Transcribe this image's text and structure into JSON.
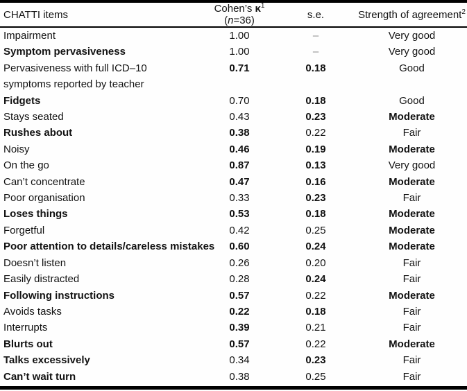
{
  "table": {
    "header": {
      "items": "CHATTI items",
      "kappa_prefix": "Cohen’s ",
      "kappa_symbol": "κ",
      "kappa_sup": "1",
      "kappa_open": " (",
      "n_var": "n",
      "n_rest": "=36)",
      "se": "s.e.",
      "strength": "Strength of agreement",
      "strength_sup": "2"
    },
    "rows": [
      {
        "item": "Impairment",
        "kappa": "1.00",
        "se": "–",
        "se_dash": true,
        "strength": "Very good"
      },
      {
        "item": "Symptom pervasiveness",
        "item_bold": true,
        "kappa": "1.00",
        "se": "–",
        "se_dash": true,
        "strength": "Very good"
      },
      {
        "item": "Pervasiveness with full ICD–10",
        "item_line2": "symptoms reported by teacher",
        "kappa": "0.71",
        "kappa_bold": true,
        "se": "0.18",
        "se_bold": true,
        "strength": "Good"
      },
      {
        "item": "Fidgets",
        "item_bold": true,
        "kappa": "0.70",
        "se": "0.18",
        "se_bold": true,
        "strength": "Good"
      },
      {
        "item": "Stays seated",
        "kappa": "0.43",
        "se": "0.23",
        "se_bold": true,
        "strength": "Moderate",
        "strength_bold": true
      },
      {
        "item": "Rushes about",
        "item_bold": true,
        "kappa": "0.38",
        "kappa_bold": true,
        "se": "0.22",
        "strength": "Fair"
      },
      {
        "item": "Noisy",
        "kappa": "0.46",
        "kappa_bold": true,
        "se": "0.19",
        "se_bold": true,
        "strength": "Moderate",
        "strength_bold": true
      },
      {
        "item": "On the go",
        "kappa": "0.87",
        "kappa_bold": true,
        "se": "0.13",
        "se_bold": true,
        "strength": "Very good"
      },
      {
        "item": "Can’t concentrate",
        "kappa": "0.47",
        "kappa_bold": true,
        "se": "0.16",
        "se_bold": true,
        "strength": "Moderate",
        "strength_bold": true
      },
      {
        "item": "Poor organisation",
        "kappa": "0.33",
        "se": "0.23",
        "se_bold": true,
        "strength": "Fair"
      },
      {
        "item": "Loses things",
        "item_bold": true,
        "kappa": "0.53",
        "kappa_bold": true,
        "se": "0.18",
        "se_bold": true,
        "strength": "Moderate",
        "strength_bold": true
      },
      {
        "item": "Forgetful",
        "kappa": "0.42",
        "se": "0.25",
        "strength": "Moderate",
        "strength_bold": true
      },
      {
        "item": "Poor attention to details/careless mistakes",
        "item_bold": true,
        "kappa": "0.60",
        "kappa_bold": true,
        "se": "0.24",
        "se_bold": true,
        "strength": "Moderate",
        "strength_bold": true
      },
      {
        "item": "Doesn’t listen",
        "kappa": "0.26",
        "se": "0.20",
        "strength": "Fair"
      },
      {
        "item": "Easily distracted",
        "kappa": "0.28",
        "se": "0.24",
        "se_bold": true,
        "strength": "Fair"
      },
      {
        "item": "Following instructions",
        "item_bold": true,
        "kappa": "0.57",
        "kappa_bold": true,
        "se": "0.22",
        "strength": "Moderate",
        "strength_bold": true
      },
      {
        "item": "Avoids tasks",
        "kappa": "0.22",
        "kappa_bold": true,
        "se": "0.18",
        "se_bold": true,
        "strength": "Fair"
      },
      {
        "item": "Interrupts",
        "kappa": "0.39",
        "kappa_bold": true,
        "se": "0.21",
        "strength": "Fair"
      },
      {
        "item": "Blurts out",
        "item_bold": true,
        "kappa": "0.57",
        "kappa_bold": true,
        "se": "0.22",
        "strength": "Moderate",
        "strength_bold": true
      },
      {
        "item": "Talks excessively",
        "item_bold": true,
        "kappa": "0.34",
        "se": "0.23",
        "se_bold": true,
        "strength": "Fair"
      },
      {
        "item": "Can’t wait turn",
        "item_bold": true,
        "kappa": "0.38",
        "se": "0.25",
        "strength": "Fair"
      }
    ]
  },
  "colors": {
    "rule": "#000000",
    "text": "#121212",
    "dash": "#8a8a8a",
    "background": "#fefefe"
  }
}
